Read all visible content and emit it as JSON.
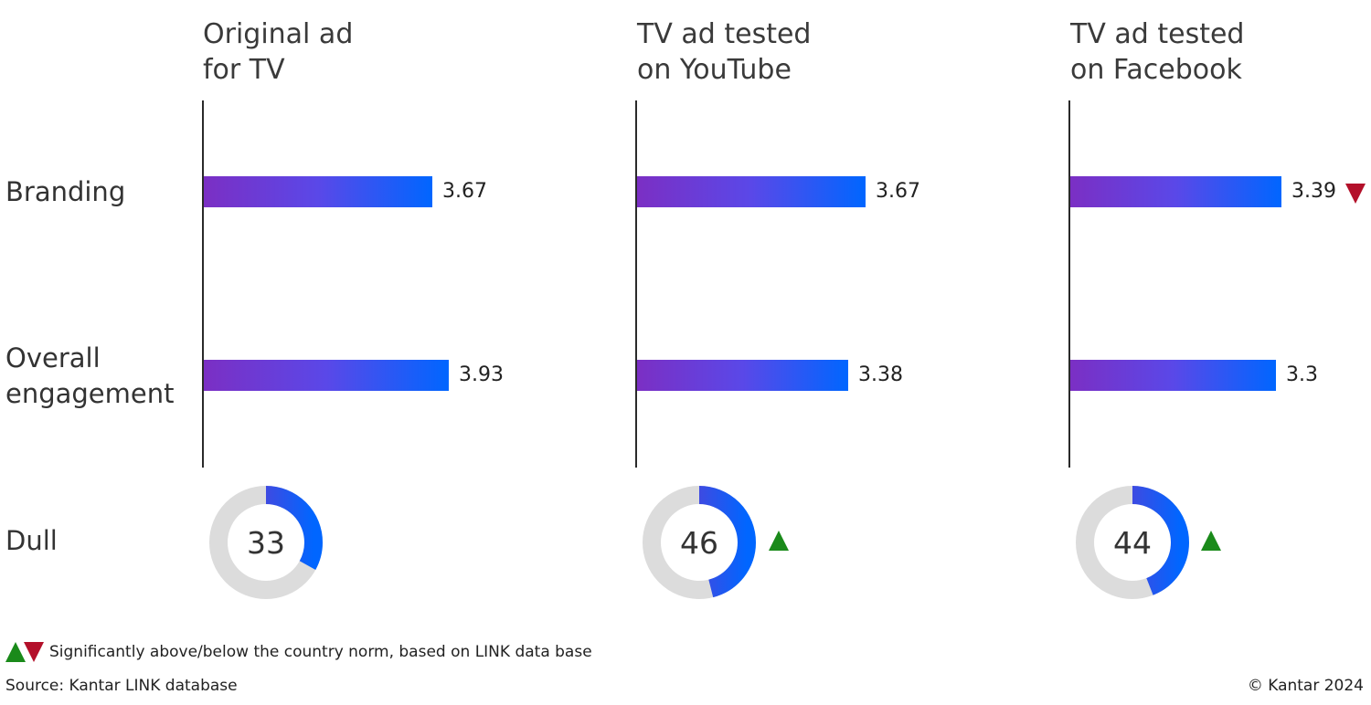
{
  "chart_data": {
    "type": "bar",
    "categories": [
      "Branding",
      "Overall engagement"
    ],
    "panels": [
      {
        "title_line1": "Original ad",
        "title_line2": "for TV",
        "values": [
          3.67,
          3.93
        ],
        "value_labels": [
          "3.67",
          "3.93"
        ],
        "significance": [
          "",
          ""
        ],
        "dull": 33,
        "dull_label": "33",
        "dull_significance": ""
      },
      {
        "title_line1": "TV ad tested",
        "title_line2": "on YouTube",
        "values": [
          3.67,
          3.38
        ],
        "value_labels": [
          "3.67",
          "3.38"
        ],
        "significance": [
          "",
          ""
        ],
        "dull": 46,
        "dull_label": "46",
        "dull_significance": "up"
      },
      {
        "title_line1": "TV ad tested",
        "title_line2": "on Facebook",
        "values": [
          3.39,
          3.3
        ],
        "value_labels": [
          "3.39",
          "3.3"
        ],
        "significance": [
          "down",
          ""
        ],
        "dull": 44,
        "dull_label": "44",
        "dull_significance": "up"
      }
    ],
    "row_labels": {
      "branding": "Branding",
      "engagement_line1": "Overall",
      "engagement_line2": "engagement",
      "dull": "Dull"
    },
    "xlim": [
      0,
      5
    ],
    "dull_scale": [
      0,
      100
    ]
  },
  "colors": {
    "bar_gradient_start": "#7b2fc4",
    "bar_gradient_end": "#0066ff",
    "donut_track": "#dcdcdc",
    "significant_above": "#1a8a1a",
    "significant_below": "#b3102a"
  },
  "footer": {
    "legend_text": "Significantly above/below the country norm, based on LINK data base",
    "source": "Source: Kantar LINK database",
    "copyright": "© Kantar 2024"
  }
}
